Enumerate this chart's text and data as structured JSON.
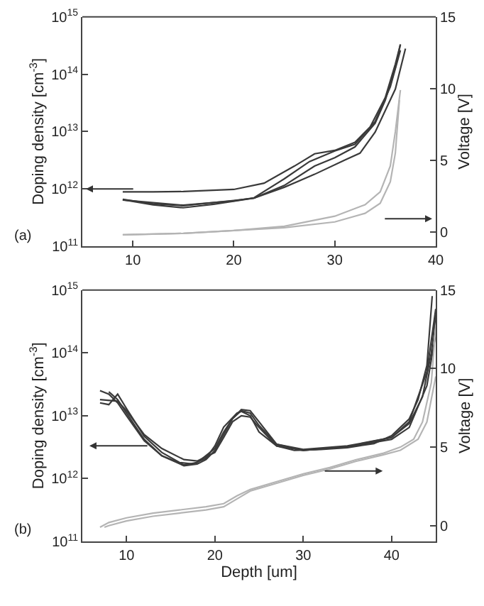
{
  "chart_data": [
    {
      "type": "line",
      "annotations": [
        "(a)"
      ],
      "ylabel": "Doping density [cm$^{-3}$]",
      "y2label": "Voltage [V]",
      "log": "y",
      "grid": false,
      "marker": "none",
      "line_style": "solid",
      "xlim": [
        5,
        40
      ],
      "xticks": [
        10,
        20,
        30,
        40
      ],
      "ylim": [
        100000000000.0,
        1000000000000000.0
      ],
      "yticks": [
        {
          "value": 100000000000.0,
          "label": "10$^{11}$"
        },
        {
          "value": 1000000000000.0,
          "label": "10$^{12}$"
        },
        {
          "value": 10000000000000.0,
          "label": "10$^{13}$"
        },
        {
          "value": 100000000000000.0,
          "label": "10$^{14}$"
        },
        {
          "value": 1000000000000000.0,
          "label": "10$^{15}$"
        }
      ],
      "y2lim": [
        -1,
        15
      ],
      "y2ticks": [
        0,
        5,
        10,
        15
      ],
      "series": [
        {
          "color": "#3a3a3a",
          "x": [
            9,
            12,
            15,
            20,
            23,
            26,
            28,
            30,
            32,
            33.5,
            35,
            36,
            36.5
          ],
          "values": [
            890000000000.0,
            890000000000.0,
            900000000000.0,
            980000000000.0,
            1260000000000.0,
            2500000000000.0,
            4100000000000.0,
            4700000000000.0,
            6500000000000.0,
            12000000000000.0,
            39000000000000.0,
            150000000000000.0,
            330000000000000.0
          ]
        },
        {
          "color": "#3a3a3a",
          "x": [
            9,
            12,
            15,
            20,
            22,
            25,
            28,
            30,
            32,
            34,
            35,
            36,
            36.5
          ],
          "values": [
            660000000000.0,
            550000000000.0,
            510000000000.0,
            630000000000.0,
            690000000000.0,
            1150000000000.0,
            2500000000000.0,
            3500000000000.0,
            5400000000000.0,
            14000000000000.0,
            35000000000000.0,
            130000000000000.0,
            330000000000000.0
          ]
        },
        {
          "color": "#3a3a3a",
          "x": [
            9,
            12,
            15,
            18,
            22,
            25,
            28,
            31,
            32.5,
            34,
            36,
            37
          ],
          "values": [
            650000000000.0,
            530000000000.0,
            470000000000.0,
            540000000000.0,
            690000000000.0,
            1070000000000.0,
            1800000000000.0,
            3200000000000.0,
            4200000000000.0,
            9800000000000.0,
            55000000000000.0,
            280000000000000.0
          ]
        },
        {
          "color": "#3a3a3a",
          "x": [
            9,
            15,
            20,
            22,
            25,
            27.5,
            30,
            32,
            34,
            35.5,
            36.5
          ],
          "values": [
            640000000000.0,
            520000000000.0,
            620000000000.0,
            700000000000.0,
            1500000000000.0,
            3000000000000.0,
            4600000000000.0,
            6000000000000.0,
            15000000000000.0,
            60000000000000.0,
            260000000000000.0
          ]
        },
        {
          "color": "#b4b4b4",
          "axis": "y2",
          "x": [
            9,
            15,
            20,
            25,
            30,
            33,
            34.5,
            35.5,
            36,
            36.5
          ],
          "values": [
            -0.2,
            -0.1,
            0.1,
            0.4,
            1.1,
            1.9,
            2.8,
            4.6,
            7,
            9.9
          ]
        },
        {
          "color": "#b4b4b4",
          "axis": "y2",
          "x": [
            9,
            15,
            20,
            25,
            30,
            33,
            34.5,
            35.5,
            36,
            36.4
          ],
          "values": [
            -0.2,
            -0.1,
            0.1,
            0.3,
            0.7,
            1.3,
            2,
            3.5,
            5.5,
            9.2
          ]
        }
      ]
    },
    {
      "type": "line",
      "annotations": [
        "(b)"
      ],
      "xlabel": "Depth [um]",
      "ylabel": "Doping density [cm$^{-3}$]",
      "y2label": "Voltage [V]",
      "log": "y",
      "grid": false,
      "marker": "none",
      "line_style": "solid",
      "xlim": [
        5,
        45
      ],
      "xticks": [
        10,
        20,
        30,
        40
      ],
      "ylim": [
        100000000000.0,
        1000000000000000.0
      ],
      "yticks": [
        {
          "value": 100000000000.0,
          "label": "10$^{11}$"
        },
        {
          "value": 1000000000000.0,
          "label": "10$^{12}$"
        },
        {
          "value": 10000000000000.0,
          "label": "10$^{13}$"
        },
        {
          "value": 100000000000000.0,
          "label": "10$^{14}$"
        },
        {
          "value": 1000000000000000.0,
          "label": "10$^{15}$"
        }
      ],
      "y2lim": [
        -1,
        15
      ],
      "y2ticks": [
        0,
        5,
        10,
        15
      ],
      "series": [
        {
          "color": "#3a3a3a",
          "x": [
            7,
            8,
            9,
            10,
            12,
            14,
            16,
            17.5,
            19,
            20,
            21,
            22.5,
            23,
            24,
            25,
            27,
            29,
            32,
            35,
            38,
            40,
            42,
            43,
            44,
            44.6
          ],
          "values": [
            16000000000000.0,
            15000000000000.0,
            22000000000000.0,
            13000000000000.0,
            4700000000000.0,
            2600000000000.0,
            1800000000000.0,
            1700000000000.0,
            2100000000000.0,
            3300000000000.0,
            6600000000000.0,
            11000000000000.0,
            11700000000000.0,
            10000000000000.0,
            5500000000000.0,
            3300000000000.0,
            2800000000000.0,
            2900000000000.0,
            3100000000000.0,
            3600000000000.0,
            4800000000000.0,
            8900000000000.0,
            18000000000000.0,
            63000000000000.0,
            800000000000000.0
          ]
        },
        {
          "color": "#3a3a3a",
          "x": [
            7,
            8,
            9,
            10,
            12,
            14,
            16.5,
            18,
            20,
            21,
            22,
            23,
            24,
            25,
            27,
            30,
            35,
            40,
            42,
            43.5,
            44.5,
            45
          ],
          "values": [
            25000000000000.0,
            22000000000000.0,
            16000000000000.0,
            10000000000000.0,
            4000000000000.0,
            2300000000000.0,
            1650000000000.0,
            1800000000000.0,
            3000000000000.0,
            5500000000000.0,
            9000000000000.0,
            12000000000000.0,
            11000000000000.0,
            7000000000000.0,
            3500000000000.0,
            2900000000000.0,
            3300000000000.0,
            4500000000000.0,
            7500000000000.0,
            20000000000000.0,
            100000000000000.0,
            400000000000000.0
          ]
        },
        {
          "color": "#3a3a3a",
          "x": [
            7,
            9,
            10,
            12,
            14,
            16.5,
            18,
            20,
            21,
            22,
            23,
            24,
            25,
            27,
            30,
            35,
            40,
            42,
            44,
            45
          ],
          "values": [
            18000000000000.0,
            17000000000000.0,
            12000000000000.0,
            5000000000000.0,
            3000000000000.0,
            2000000000000.0,
            1900000000000.0,
            2600000000000.0,
            4500000000000.0,
            8000000000000.0,
            10000000000000.0,
            9500000000000.0,
            6500000000000.0,
            3300000000000.0,
            2800000000000.0,
            3200000000000.0,
            4200000000000.0,
            6500000000000.0,
            30000000000000.0,
            200000000000000.0
          ]
        },
        {
          "color": "#3a3a3a",
          "x": [
            8,
            9,
            10,
            12,
            14,
            16.5,
            18,
            19,
            20,
            21,
            22,
            23,
            24,
            25,
            27,
            30,
            35,
            40,
            42,
            44,
            45
          ],
          "values": [
            24000000000000.0,
            18000000000000.0,
            11000000000000.0,
            4200000000000.0,
            2300000000000.0,
            1600000000000.0,
            1700000000000.0,
            2000000000000.0,
            2800000000000.0,
            5000000000000.0,
            9000000000000.0,
            12500000000000.0,
            12000000000000.0,
            8000000000000.0,
            3500000000000.0,
            2800000000000.0,
            3200000000000.0,
            4500000000000.0,
            8000000000000.0,
            50000000000000.0,
            500000000000000.0
          ]
        },
        {
          "color": "#b4b4b4",
          "axis": "y2",
          "x": [
            7,
            8,
            10,
            13,
            16,
            19,
            21,
            22.5,
            24,
            27,
            30,
            33,
            36,
            39,
            41,
            42.5,
            43.5,
            44.5,
            45
          ],
          "values": [
            -0.1,
            0.2,
            0.5,
            0.8,
            1,
            1.2,
            1.4,
            1.9,
            2.3,
            2.8,
            3.3,
            3.7,
            4.2,
            4.6,
            5,
            5.5,
            6.6,
            9.1,
            12.7
          ]
        },
        {
          "color": "#b4b4b4",
          "axis": "y2",
          "x": [
            7.5,
            8,
            10,
            13,
            16,
            19,
            21,
            22.5,
            24,
            27,
            30,
            33,
            36,
            39,
            41,
            43,
            44,
            45
          ],
          "values": [
            -0.1,
            0,
            0.3,
            0.6,
            0.8,
            1,
            1.2,
            1.7,
            2.2,
            2.7,
            3.2,
            3.6,
            4.1,
            4.5,
            4.8,
            5.5,
            6.6,
            9.5
          ]
        }
      ]
    }
  ]
}
